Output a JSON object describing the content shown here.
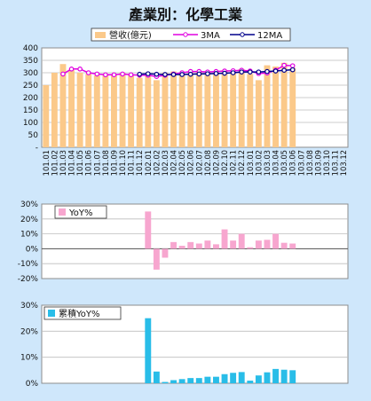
{
  "title": "產業別：化學工業",
  "chart_data": [
    {
      "id": "revenue",
      "type": "bar",
      "legend": [
        "營收(億元)",
        "3MA",
        "12MA"
      ],
      "colors": {
        "bar": "#fbc98a",
        "ma3": "#e000e0",
        "ma12": "#00008b"
      },
      "categories": [
        "101.01",
        "101.02",
        "101.03",
        "101.04",
        "101.05",
        "101.06",
        "101.07",
        "101.08",
        "101.09",
        "101.10",
        "101.11",
        "101.12",
        "102.01",
        "102.02",
        "102.03",
        "102.04",
        "102.05",
        "102.06",
        "102.07",
        "102.08",
        "102.09",
        "102.10",
        "102.11",
        "102.12",
        "103.01",
        "103.02",
        "103.03",
        "103.04",
        "103.05",
        "103.06",
        "103.07",
        "103.08",
        "103.09",
        "103.10",
        "103.11",
        "103.12"
      ],
      "series": [
        {
          "name": "營收(億元)",
          "values": [
            250,
            300,
            335,
            310,
            300,
            295,
            290,
            290,
            290,
            300,
            290,
            280,
            295,
            270,
            300,
            305,
            300,
            305,
            305,
            305,
            305,
            310,
            310,
            315,
            295,
            270,
            330,
            325,
            340,
            320,
            null,
            null,
            null,
            null,
            null,
            null
          ]
        },
        {
          "name": "3MA",
          "values": [
            null,
            null,
            295,
            315,
            315,
            300,
            295,
            292,
            292,
            295,
            292,
            290,
            290,
            285,
            290,
            295,
            300,
            305,
            305,
            303,
            305,
            307,
            308,
            310,
            307,
            297,
            299,
            310,
            330,
            328,
            null,
            null,
            null,
            null,
            null,
            null
          ]
        },
        {
          "name": "12MA",
          "values": [
            null,
            null,
            null,
            null,
            null,
            null,
            null,
            null,
            null,
            null,
            null,
            294,
            296,
            294,
            293,
            293,
            293,
            294,
            295,
            296,
            297,
            298,
            300,
            303,
            303,
            303,
            305,
            307,
            310,
            312,
            null,
            null,
            null,
            null,
            null,
            null
          ]
        }
      ],
      "ylim": [
        0,
        400
      ],
      "yticks": [
        "-",
        "50",
        "100",
        "150",
        "200",
        "250",
        "300",
        "350",
        "400"
      ],
      "grid": true
    },
    {
      "id": "yoy",
      "type": "bar",
      "legend": [
        "YoY%"
      ],
      "colors": {
        "bar": "#f7a6cf"
      },
      "categories": [
        "101.01",
        "101.02",
        "101.03",
        "101.04",
        "101.05",
        "101.06",
        "101.07",
        "101.08",
        "101.09",
        "101.10",
        "101.11",
        "101.12",
        "102.01",
        "102.02",
        "102.03",
        "102.04",
        "102.05",
        "102.06",
        "102.07",
        "102.08",
        "102.09",
        "102.10",
        "102.11",
        "102.12",
        "103.01",
        "103.02",
        "103.03",
        "103.04",
        "103.05",
        "103.06",
        "103.07",
        "103.08",
        "103.09",
        "103.10",
        "103.11",
        "103.12"
      ],
      "series": [
        {
          "name": "YoY%",
          "values": [
            null,
            null,
            null,
            null,
            null,
            null,
            null,
            null,
            null,
            null,
            null,
            null,
            25,
            -14,
            -6,
            4.5,
            2,
            4.5,
            3.5,
            5.5,
            3,
            13,
            5.5,
            10,
            1,
            5.5,
            6,
            10,
            4,
            3.5,
            null,
            null,
            null,
            null,
            null,
            null
          ]
        }
      ],
      "ylim": [
        -20,
        30
      ],
      "yticks": [
        "-20%",
        "-10%",
        "0%",
        "10%",
        "20%",
        "30%"
      ],
      "grid": true
    },
    {
      "id": "cumyoy",
      "type": "bar",
      "legend": [
        "累積YoY%"
      ],
      "colors": {
        "bar": "#29bde8"
      },
      "categories": [
        "101.01",
        "101.02",
        "101.03",
        "101.04",
        "101.05",
        "101.06",
        "101.07",
        "101.08",
        "101.09",
        "101.10",
        "101.11",
        "101.12",
        "102.01",
        "102.02",
        "102.03",
        "102.04",
        "102.05",
        "102.06",
        "102.07",
        "102.08",
        "102.09",
        "102.10",
        "102.11",
        "102.12",
        "103.01",
        "103.02",
        "103.03",
        "103.04",
        "103.05",
        "103.06",
        "103.07",
        "103.08",
        "103.09",
        "103.10",
        "103.11",
        "103.12"
      ],
      "series": [
        {
          "name": "累積YoY%",
          "values": [
            null,
            null,
            null,
            null,
            null,
            null,
            null,
            null,
            null,
            null,
            null,
            null,
            25,
            4.5,
            0.5,
            1.2,
            1.6,
            2,
            2,
            2.5,
            2.5,
            3.5,
            4,
            4.3,
            1,
            3,
            4.2,
            5.5,
            5.2,
            5,
            null,
            null,
            null,
            null,
            null,
            null
          ]
        }
      ],
      "ylim": [
        0,
        30
      ],
      "yticks": [
        "0%",
        "10%",
        "20%",
        "30%"
      ],
      "grid": true
    }
  ]
}
